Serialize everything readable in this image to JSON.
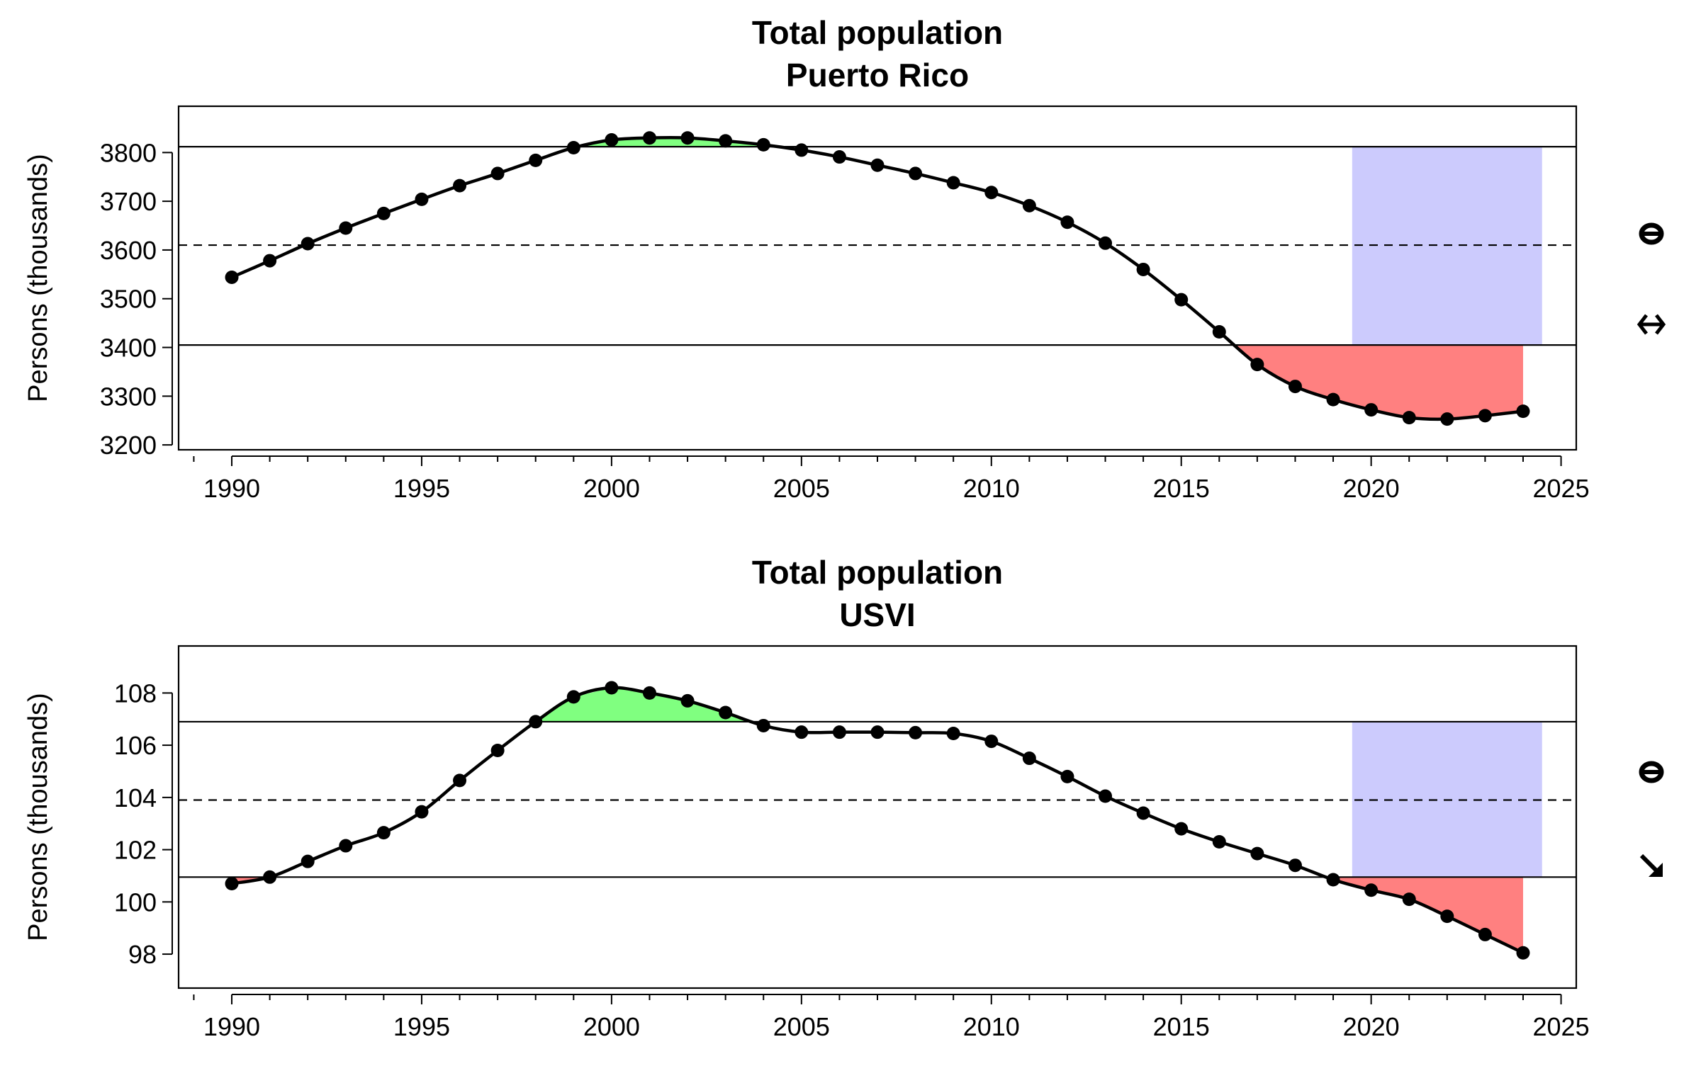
{
  "chart_data": [
    {
      "type": "line",
      "title": "Total population",
      "subtitle": "Puerto Rico",
      "xlabel": "",
      "ylabel": "Persons (thousands)",
      "xlim": [
        1988.6,
        2025.4
      ],
      "ylim": [
        3190,
        3895
      ],
      "x_ticks": [
        1990,
        1995,
        2000,
        2005,
        2010,
        2015,
        2020,
        2025
      ],
      "y_ticks": [
        3200,
        3300,
        3400,
        3500,
        3600,
        3700,
        3800
      ],
      "grid": false,
      "x": [
        1990,
        1991,
        1992,
        1993,
        1994,
        1995,
        1996,
        1997,
        1998,
        1999,
        2000,
        2001,
        2002,
        2003,
        2004,
        2005,
        2006,
        2007,
        2008,
        2009,
        2010,
        2011,
        2012,
        2013,
        2014,
        2015,
        2016,
        2017,
        2018,
        2019,
        2020,
        2021,
        2022,
        2023,
        2024
      ],
      "values": [
        3544,
        3578,
        3613,
        3645,
        3675,
        3704,
        3732,
        3757,
        3784,
        3810,
        3826,
        3830,
        3830,
        3824,
        3816,
        3805,
        3791,
        3774,
        3757,
        3738,
        3718,
        3691,
        3657,
        3614,
        3560,
        3498,
        3432,
        3365,
        3320,
        3293,
        3272,
        3256,
        3253,
        3260,
        3269
      ],
      "reference_lines": {
        "upper": 3812,
        "mean": 3610,
        "lower": 3405
      },
      "shaded_period": [
        2019.5,
        2024.5
      ],
      "colors": {
        "above": "#80ff80",
        "below": "#ff8080",
        "period": "#cccbfd",
        "line": "#000000"
      },
      "indicators": [
        "circle-bar-icon",
        "double-arrow-horizontal-icon"
      ]
    },
    {
      "type": "line",
      "title": "Total population",
      "subtitle": "USVI",
      "xlabel": "",
      "ylabel": "Persons (thousands)",
      "xlim": [
        1988.6,
        2025.4
      ],
      "ylim": [
        96.7,
        109.8
      ],
      "x_ticks": [
        1990,
        1995,
        2000,
        2005,
        2010,
        2015,
        2020,
        2025
      ],
      "y_ticks": [
        98,
        100,
        102,
        104,
        106,
        108
      ],
      "grid": false,
      "x": [
        1990,
        1991,
        1992,
        1993,
        1994,
        1995,
        1996,
        1997,
        1998,
        1999,
        2000,
        2001,
        2002,
        2003,
        2004,
        2005,
        2006,
        2007,
        2008,
        2009,
        2010,
        2011,
        2012,
        2013,
        2014,
        2015,
        2016,
        2017,
        2018,
        2019,
        2020,
        2021,
        2022,
        2023,
        2024
      ],
      "values": [
        100.7,
        100.95,
        101.55,
        102.15,
        102.65,
        103.45,
        104.65,
        105.8,
        106.9,
        107.85,
        108.2,
        108.0,
        107.7,
        107.25,
        106.75,
        106.5,
        106.5,
        106.5,
        106.48,
        106.45,
        106.15,
        105.5,
        104.8,
        104.05,
        103.4,
        102.8,
        102.3,
        101.85,
        101.4,
        100.85,
        100.45,
        100.1,
        99.45,
        98.75,
        98.05
      ],
      "reference_lines": {
        "upper": 106.9,
        "mean": 103.9,
        "lower": 100.95
      },
      "shaded_period": [
        2019.5,
        2024.5
      ],
      "colors": {
        "above": "#80ff80",
        "below": "#ff8080",
        "period": "#cccbfd",
        "line": "#000000"
      },
      "indicators": [
        "circle-bar-icon",
        "arrow-down-right-icon"
      ]
    }
  ]
}
